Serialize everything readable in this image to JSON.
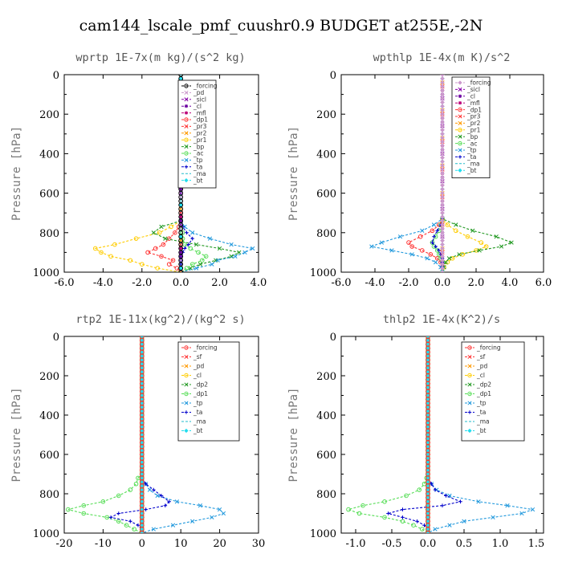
{
  "figure": {
    "title": "cam144_lscale_pmf_cuushr0.9  BUDGET at255E,-2N"
  },
  "chart_data": [
    {
      "type": "line",
      "title": "wprtp  1E-7x(m kg)/(s^2 kg)",
      "xlabel": "",
      "ylabel": "Pressure [hPa]",
      "xlim": [
        -6,
        4
      ],
      "ylim": [
        1000,
        0
      ],
      "xticks": [
        "-6.0",
        "-4.0",
        "-2.0",
        "0.0",
        "2.0",
        "4.0"
      ],
      "yticks": [
        "0",
        "200",
        "400",
        "600",
        "800",
        "1000"
      ],
      "legend": "top-right",
      "pressure": [
        740,
        770,
        800,
        830,
        860,
        880,
        900,
        920,
        940,
        960,
        980,
        1000
      ],
      "series": [
        {
          "name": "_forcing",
          "color": "#000000",
          "marker": "o",
          "constant": 0.0
        },
        {
          "name": "_pd",
          "color": "#cc99cc",
          "marker": "x",
          "constant": 0.0
        },
        {
          "name": "_sicl",
          "color": "#8800aa",
          "marker": "x",
          "constant": 0.0
        },
        {
          "name": "_cl",
          "color": "#6a00a0",
          "marker": "*",
          "constant": 0.0
        },
        {
          "name": "_mfl",
          "color": "#bb0077",
          "marker": "*",
          "constant": 0.0
        },
        {
          "name": "_dp1",
          "color": "#ff3333",
          "marker": "o",
          "values": [
            0,
            -0.1,
            -0.3,
            -0.6,
            -0.9,
            -1.3,
            -1.7,
            -1.0,
            -0.4,
            -0.6,
            -0.2,
            0
          ]
        },
        {
          "name": "_pr3",
          "color": "#ff3333",
          "marker": "x",
          "constant": 0.0
        },
        {
          "name": "_pr2",
          "color": "#ff9900",
          "marker": "x",
          "constant": 0.0
        },
        {
          "name": "_pr1",
          "color": "#ffcc00",
          "marker": "o",
          "values": [
            0,
            -0.5,
            -1.1,
            -2.3,
            -3.4,
            -4.4,
            -4.1,
            -3.6,
            -2.6,
            -2.0,
            -1.2,
            0
          ]
        },
        {
          "name": "_bp",
          "color": "#229922",
          "marker": "x",
          "values": [
            0,
            -1.0,
            -1.4,
            -0.8,
            0.8,
            2.0,
            3.0,
            2.6,
            1.8,
            1.0,
            0.5,
            0
          ]
        },
        {
          "name": "_ac",
          "color": "#55dd55",
          "marker": "o",
          "values": [
            0,
            0,
            0.1,
            0.1,
            0.2,
            0.5,
            0.9,
            1.3,
            1.1,
            0.6,
            0.3,
            0
          ]
        },
        {
          "name": "_tp",
          "color": "#2299dd",
          "marker": "x",
          "values": [
            0,
            0.2,
            0.6,
            1.5,
            2.6,
            3.7,
            3.3,
            2.8,
            1.9,
            1.6,
            0.8,
            0
          ]
        },
        {
          "name": "_ta",
          "color": "#0000cc",
          "marker": "+",
          "values": [
            0,
            0.1,
            0.3,
            0.6,
            0.4,
            0.2,
            0.1,
            0.0,
            0.0,
            0.0,
            0.0,
            0
          ]
        },
        {
          "name": "_ma",
          "color": "#22bbcc",
          "marker": "-",
          "constant": 0.0
        },
        {
          "name": "_bt",
          "color": "#22ddee",
          "marker": "D",
          "constant": 0.0
        }
      ]
    },
    {
      "type": "line",
      "title": "wpthlp  1E-4x(m K)/s^2",
      "xlabel": "",
      "ylabel": "Pressure [hPa]",
      "xlim": [
        -6,
        6
      ],
      "ylim": [
        1000,
        0
      ],
      "xticks": [
        "-6.0",
        "-4.0",
        "-2.0",
        "0.0",
        "2.0",
        "4.0",
        "6.0"
      ],
      "yticks": [
        "0",
        "200",
        "400",
        "600",
        "800",
        "1000"
      ],
      "legend": "top-right",
      "pressure": [
        730,
        760,
        790,
        820,
        850,
        870,
        890,
        910,
        930,
        950,
        975,
        1000
      ],
      "series": [
        {
          "name": "_forcing",
          "color": "#cc99cc",
          "marker": "D",
          "constant": 0.0
        },
        {
          "name": "_sicl",
          "color": "#8800aa",
          "marker": "x",
          "constant": 0.0
        },
        {
          "name": "_cl",
          "color": "#6a00a0",
          "marker": "*",
          "constant": 0.0
        },
        {
          "name": "_mfl",
          "color": "#bb0077",
          "marker": "*",
          "constant": 0.0
        },
        {
          "name": "_dp1",
          "color": "#ff3333",
          "marker": "o",
          "values": [
            0,
            -0.2,
            -0.6,
            -1.3,
            -2.0,
            -1.8,
            -1.2,
            -0.7,
            -0.3,
            -0.1,
            0,
            0
          ]
        },
        {
          "name": "_pr3",
          "color": "#ff3333",
          "marker": "x",
          "constant": 0.0
        },
        {
          "name": "_pr2",
          "color": "#ff9900",
          "marker": "x",
          "constant": 0.0
        },
        {
          "name": "_pr1",
          "color": "#ffcc00",
          "marker": "o",
          "values": [
            0,
            0.3,
            0.8,
            1.5,
            2.3,
            2.6,
            2.0,
            1.2,
            0.6,
            0.3,
            0.1,
            0
          ]
        },
        {
          "name": "_bp",
          "color": "#229922",
          "marker": "x",
          "values": [
            0,
            0.8,
            1.8,
            3.2,
            4.1,
            3.5,
            2.2,
            1.0,
            0.4,
            0.2,
            0.1,
            0
          ]
        },
        {
          "name": "_ac",
          "color": "#55dd55",
          "marker": "o",
          "values": [
            0,
            -0.1,
            -0.2,
            -0.4,
            -0.6,
            -0.5,
            -0.3,
            -0.2,
            -0.1,
            0,
            0,
            0
          ]
        },
        {
          "name": "_tp",
          "color": "#2299dd",
          "marker": "x",
          "values": [
            0,
            -0.5,
            -1.2,
            -2.5,
            -3.6,
            -4.2,
            -3.0,
            -1.8,
            -0.9,
            -0.4,
            -0.1,
            0
          ]
        },
        {
          "name": "_ta",
          "color": "#0000cc",
          "marker": "+",
          "values": [
            0,
            -0.1,
            -0.3,
            -0.5,
            -0.6,
            -0.4,
            -0.2,
            -0.1,
            0,
            0,
            0,
            0
          ]
        },
        {
          "name": "_ma",
          "color": "#22bbcc",
          "marker": "-",
          "constant": 0.0
        },
        {
          "name": "_bt",
          "color": "#22ddee",
          "marker": "D",
          "constant": 0.0
        }
      ]
    },
    {
      "type": "line",
      "title": "rtp2  1E-11x(kg^2)/(kg^2 s)",
      "xlabel": "",
      "ylabel": "Pressure [hPa]",
      "xlim": [
        -20,
        30
      ],
      "ylim": [
        1000,
        0
      ],
      "xticks": [
        "-20",
        "-10",
        "0",
        "10",
        "20",
        "30"
      ],
      "yticks": [
        "0",
        "200",
        "400",
        "600",
        "800",
        "1000"
      ],
      "legend": "top-right",
      "pressure": [
        720,
        750,
        780,
        810,
        840,
        860,
        880,
        900,
        920,
        940,
        960,
        980,
        1000
      ],
      "series": [
        {
          "name": "_forcing",
          "color": "#ff3333",
          "marker": "o",
          "constant": 0.0
        },
        {
          "name": "_sf",
          "color": "#ff3333",
          "marker": "x",
          "constant": 0.0
        },
        {
          "name": "_pd",
          "color": "#ff9900",
          "marker": "x",
          "constant": 0.0
        },
        {
          "name": "_cl",
          "color": "#ffcc00",
          "marker": "o",
          "constant": 0.0
        },
        {
          "name": "_dp2",
          "color": "#229922",
          "marker": "x",
          "constant": 0.0
        },
        {
          "name": "_dp1",
          "color": "#55dd55",
          "marker": "o",
          "values": [
            -1,
            -1.5,
            -3,
            -6,
            -10,
            -15,
            -19,
            -15,
            -9,
            -6,
            -4,
            -2,
            0
          ]
        },
        {
          "name": "_tp",
          "color": "#2299dd",
          "marker": "x",
          "values": [
            0,
            1,
            2,
            4,
            9,
            15,
            20,
            21,
            18,
            13,
            8,
            3,
            0
          ]
        },
        {
          "name": "_ta",
          "color": "#0000cc",
          "marker": "+",
          "values": [
            0,
            1,
            3,
            5,
            7,
            6,
            1,
            -6,
            -8,
            -3,
            -1,
            0,
            0
          ]
        },
        {
          "name": "_ma",
          "color": "#22bbcc",
          "marker": "-",
          "constant": 0.0
        },
        {
          "name": "_bt",
          "color": "#22ddee",
          "marker": "D",
          "constant": 0.0
        }
      ]
    },
    {
      "type": "line",
      "title": "thlp2  1E-4x(K^2)/s",
      "xlabel": "",
      "ylabel": "Pressure [hPa]",
      "xlim": [
        -1.2,
        1.6
      ],
      "ylim": [
        1000,
        0
      ],
      "xticks": [
        "-1.0",
        "-0.5",
        "0.0",
        "0.5",
        "1.0",
        "1.5"
      ],
      "yticks": [
        "0",
        "200",
        "400",
        "600",
        "800",
        "1000"
      ],
      "legend": "top-right",
      "pressure": [
        720,
        750,
        780,
        810,
        840,
        860,
        880,
        900,
        920,
        940,
        960,
        980,
        1000
      ],
      "series": [
        {
          "name": "_forcing",
          "color": "#ff3333",
          "marker": "o",
          "constant": 0.0
        },
        {
          "name": "_sf",
          "color": "#ff3333",
          "marker": "x",
          "constant": 0.0
        },
        {
          "name": "_pd",
          "color": "#ff9900",
          "marker": "x",
          "constant": 0.0
        },
        {
          "name": "_cl",
          "color": "#ffcc00",
          "marker": "o",
          "constant": 0.0
        },
        {
          "name": "_dp2",
          "color": "#229922",
          "marker": "x",
          "constant": 0.0
        },
        {
          "name": "_dp1",
          "color": "#55dd55",
          "marker": "o",
          "values": [
            -0.02,
            -0.05,
            -0.12,
            -0.3,
            -0.6,
            -0.9,
            -1.1,
            -0.95,
            -0.6,
            -0.35,
            -0.2,
            -0.08,
            0
          ]
        },
        {
          "name": "_tp",
          "color": "#2299dd",
          "marker": "x",
          "values": [
            0,
            0.05,
            0.12,
            0.3,
            0.7,
            1.1,
            1.45,
            1.3,
            0.9,
            0.5,
            0.3,
            0.1,
            0
          ]
        },
        {
          "name": "_ta",
          "color": "#0000cc",
          "marker": "+",
          "values": [
            0,
            0.05,
            0.1,
            0.25,
            0.45,
            0.2,
            -0.35,
            -0.55,
            -0.35,
            -0.15,
            -0.05,
            0,
            0
          ]
        },
        {
          "name": "_ma",
          "color": "#22bbcc",
          "marker": "-",
          "constant": 0.0
        },
        {
          "name": "_bt",
          "color": "#22ddee",
          "marker": "D",
          "constant": 0.0
        }
      ]
    }
  ]
}
